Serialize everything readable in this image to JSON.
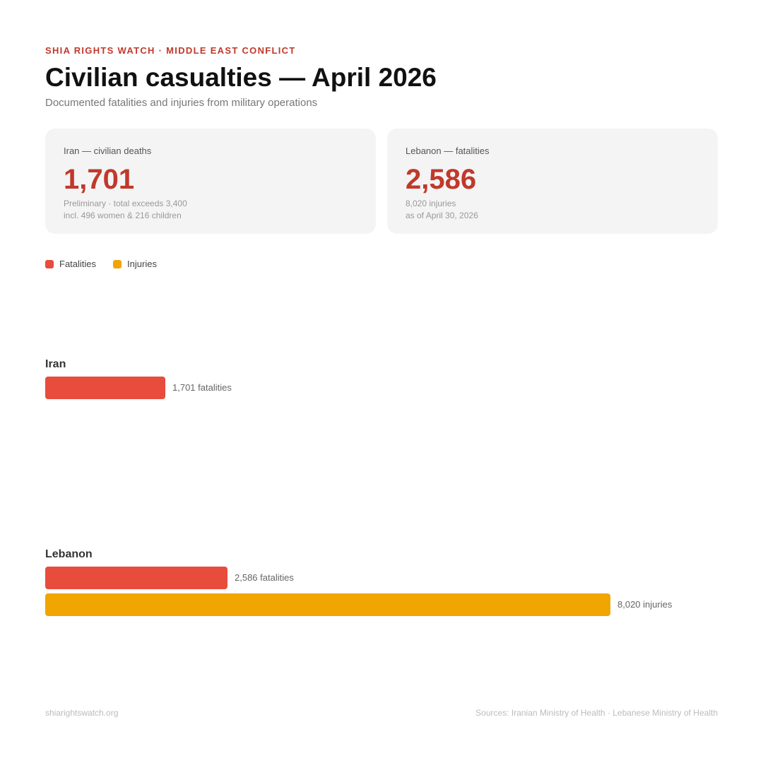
{
  "header": {
    "kicker": "SHIA RIGHTS WATCH · MIDDLE EAST CONFLICT",
    "title": "Civilian casualties — April 2026",
    "subtitle": "Documented fatalities and injuries from military operations"
  },
  "cards": [
    {
      "label": "Iran — civilian deaths",
      "value": "1,701",
      "notes": [
        "Preliminary · total exceeds 3,400",
        "incl. 496 women & 216 children"
      ]
    },
    {
      "label": "Lebanon — fatalities",
      "value": "2,586",
      "notes": [
        "8,020 injuries",
        "as of April 30, 2026"
      ]
    }
  ],
  "legend": [
    {
      "label": "Fatalities",
      "color": "#e74c3c"
    },
    {
      "label": "Injuries",
      "color": "#f0a500"
    }
  ],
  "chart_data": {
    "type": "bar",
    "orientation": "horizontal",
    "categories": [
      "Iran",
      "Lebanon"
    ],
    "series": [
      {
        "name": "Fatalities",
        "color": "#e74c3c",
        "values": [
          1701,
          2586
        ],
        "unit_label": "fatalities",
        "labels": [
          "1,701 fatalities",
          "2,586 fatalities"
        ]
      },
      {
        "name": "Injuries",
        "color": "#f0a500",
        "values": [
          null,
          8020
        ],
        "unit_label": "injuries",
        "labels": [
          null,
          "8,020 injuries"
        ]
      }
    ],
    "xlim": [
      0,
      8020
    ],
    "grid": false,
    "legend_position": "top-left"
  },
  "footer": {
    "left": "shiarightswatch.org",
    "right": "Sources: Iranian Ministry of Health · Lebanese Ministry of Health"
  }
}
